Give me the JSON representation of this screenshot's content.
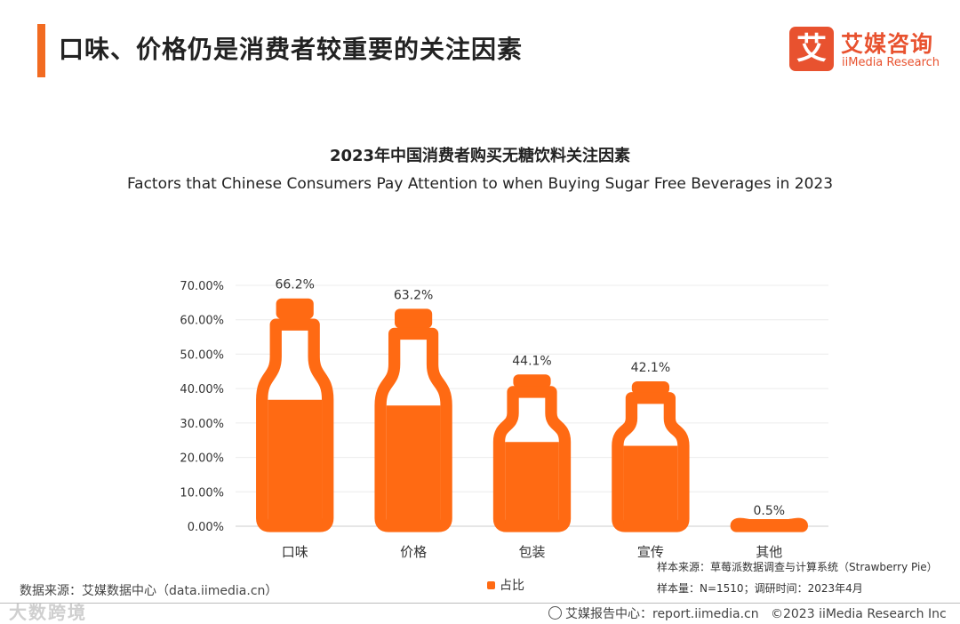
{
  "page": {
    "title": "口味、价格仍是消费者较重要的关注因素",
    "accent_color": "#F26B21"
  },
  "logo": {
    "mark": "艾",
    "name_cn": "艾媒咨询",
    "name_en": "iiMedia Research",
    "color": "#E8522F"
  },
  "chart_data": {
    "type": "bar",
    "title": "2023年中国消费者购买无糖饮料关注因素",
    "subtitle": "Factors that Chinese Consumers Pay Attention to when Buying Sugar Free Beverages in 2023",
    "categories": [
      "口味",
      "价格",
      "包装",
      "宣传",
      "其他"
    ],
    "series": [
      {
        "name": "占比",
        "values": [
          66.2,
          63.2,
          44.1,
          42.1,
          0.5
        ],
        "color": "#FF6A13"
      }
    ],
    "data_labels": [
      "66.2%",
      "63.2%",
      "44.1%",
      "42.1%",
      "0.5%"
    ],
    "ylim": [
      0,
      70
    ],
    "yticks": [
      "0.00%",
      "10.00%",
      "20.00%",
      "30.00%",
      "40.00%",
      "50.00%",
      "60.00%",
      "70.00%"
    ],
    "grid": true,
    "legend_position": "bottom",
    "mark_shape": "bottle"
  },
  "notes": {
    "sample_source": "样本来源：草莓派数据调查与计算系统（Strawberry Pie）",
    "sample_size": "样本量：N=1510；调研时间：2023年4月",
    "data_source": "数据来源：艾媒数据中心（data.iimedia.cn）"
  },
  "footer": {
    "report_center": "艾媒报告中心：report.iimedia.cn",
    "copyright": "©2023  iiMedia Research  Inc"
  },
  "watermark": "大数跨境",
  "icons": {
    "footer_icon": "globe-icon",
    "legend_icon": "bottle-swatch-icon"
  }
}
